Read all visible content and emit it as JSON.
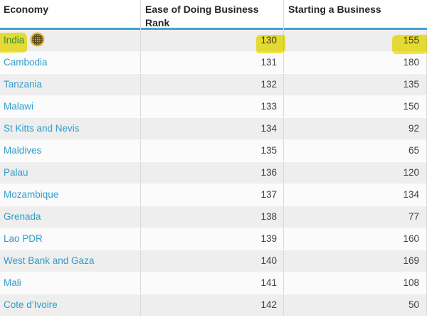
{
  "table": {
    "columns": [
      {
        "label": "Economy"
      },
      {
        "label": "Ease of Doing Business Rank"
      },
      {
        "label": "Starting a Business"
      }
    ],
    "rows": [
      {
        "economy": "India",
        "rank": "130",
        "starting_a_business": "155",
        "highlighted": true,
        "icon": "globe-grid-icon"
      },
      {
        "economy": "Cambodia",
        "rank": "131",
        "starting_a_business": "180"
      },
      {
        "economy": "Tanzania",
        "rank": "132",
        "starting_a_business": "135"
      },
      {
        "economy": "Malawi",
        "rank": "133",
        "starting_a_business": "150"
      },
      {
        "economy": "St Kitts and Nevis",
        "rank": "134",
        "starting_a_business": "92"
      },
      {
        "economy": "Maldives",
        "rank": "135",
        "starting_a_business": "65"
      },
      {
        "economy": "Palau",
        "rank": "136",
        "starting_a_business": "120"
      },
      {
        "economy": "Mozambique",
        "rank": "137",
        "starting_a_business": "134"
      },
      {
        "economy": "Grenada",
        "rank": "138",
        "starting_a_business": "77"
      },
      {
        "economy": "Lao PDR",
        "rank": "139",
        "starting_a_business": "160"
      },
      {
        "economy": "West Bank and Gaza",
        "rank": "140",
        "starting_a_business": "169"
      },
      {
        "economy": "Mali",
        "rank": "141",
        "starting_a_business": "108"
      },
      {
        "economy": "Cote d’Ivoire",
        "rank": "142",
        "starting_a_business": "50"
      }
    ]
  },
  "colors": {
    "header_underline": "#3fa3d7",
    "link": "#2d9dcb",
    "highlight": "#f6e82d",
    "row_alt": "#eeeeee",
    "row_base": "#fbfbfb",
    "icon_gold": "#e3b43f",
    "icon_grid": "#4e3d15"
  }
}
